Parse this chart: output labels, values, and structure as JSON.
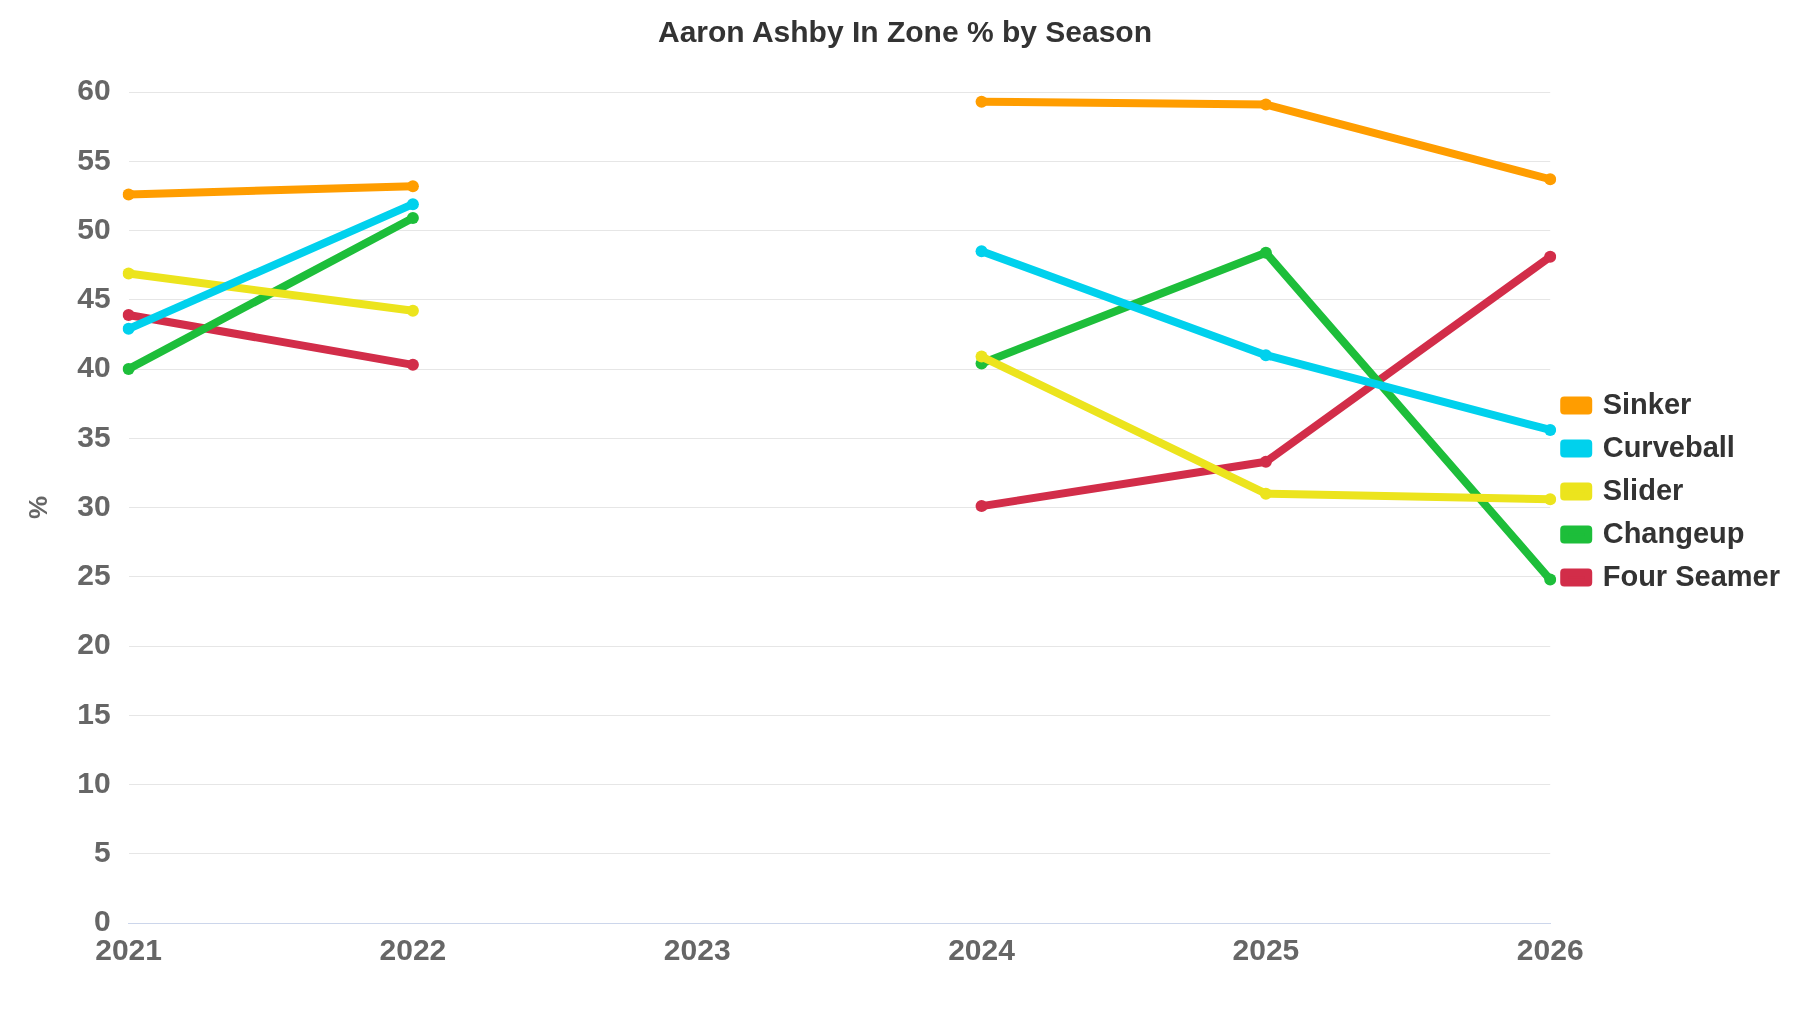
{
  "chart_data": {
    "type": "line",
    "title": "Aaron Ashby In Zone % by Season",
    "ylabel": "%",
    "categories": [
      "2021",
      "2022",
      "2023",
      "2024",
      "2025",
      "2026"
    ],
    "ylim": [
      0,
      60
    ],
    "yticks": [
      0,
      5,
      10,
      15,
      20,
      25,
      30,
      35,
      40,
      45,
      50,
      55,
      60
    ],
    "grid": "y",
    "legend": "right",
    "marker": "circle",
    "line_style": "solid",
    "series": [
      {
        "name": "Sinker",
        "color": "#ff9d00",
        "values": [
          52.6,
          53.2,
          null,
          59.3,
          59.1,
          53.7
        ]
      },
      {
        "name": "Curveball",
        "color": "#00d1ed",
        "values": [
          42.9,
          51.9,
          null,
          48.5,
          41.0,
          35.6
        ]
      },
      {
        "name": "Slider",
        "color": "#ece41d",
        "values": [
          46.9,
          44.2,
          null,
          40.9,
          31.0,
          30.6
        ]
      },
      {
        "name": "Changeup",
        "color": "#1dbe3a",
        "values": [
          40.0,
          50.9,
          null,
          40.4,
          48.4,
          24.8
        ]
      },
      {
        "name": "Four Seamer",
        "color": "#d22d49",
        "values": [
          43.9,
          40.3,
          null,
          30.1,
          33.3,
          48.1
        ]
      }
    ]
  }
}
